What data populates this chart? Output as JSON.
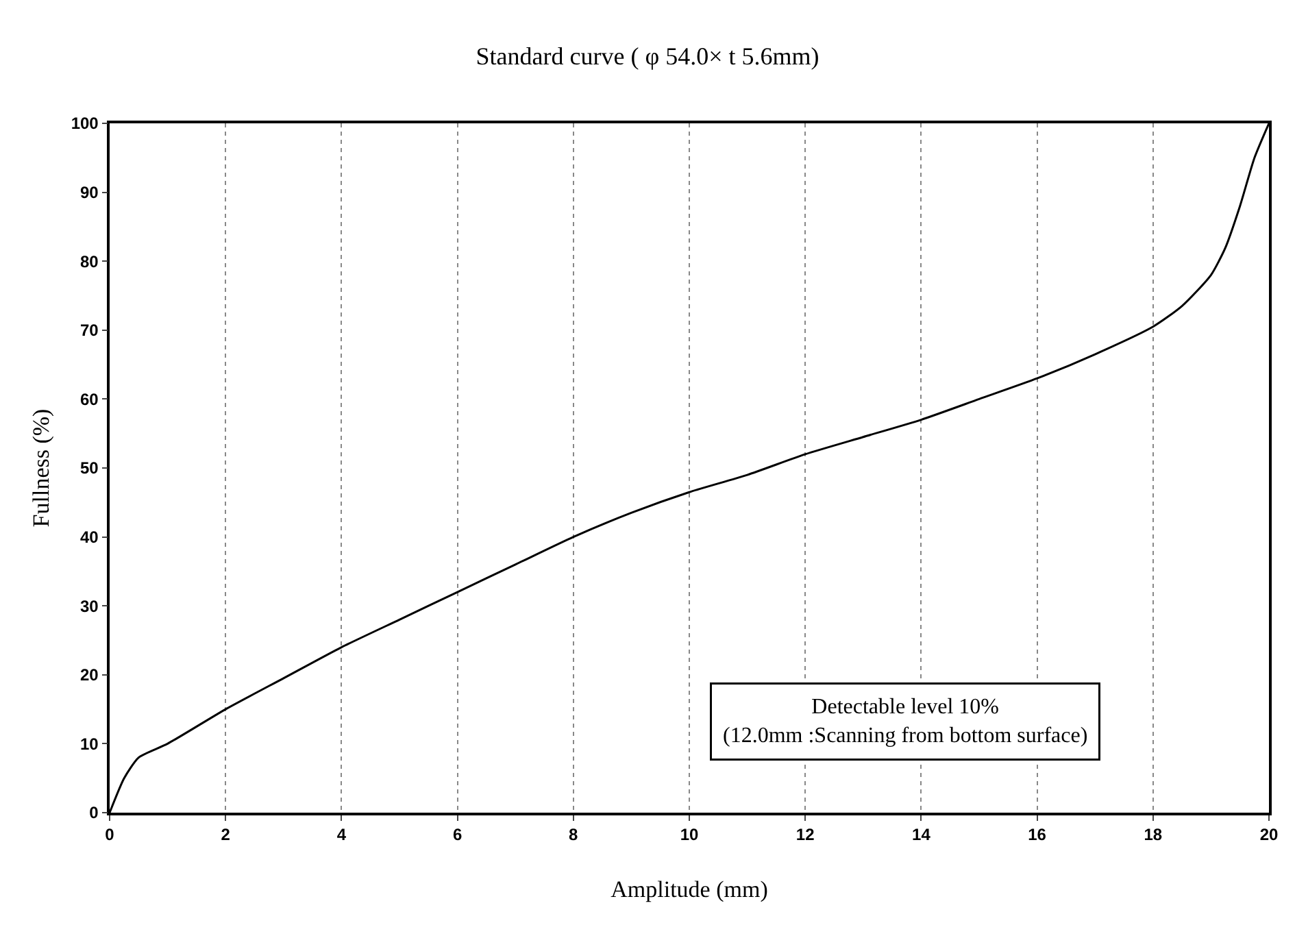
{
  "chart_data": {
    "type": "line",
    "title": "Standard curve ( φ 54.0× t 5.6mm)",
    "xlabel": "Amplitude (mm)",
    "ylabel": "Fullness (%)",
    "x": [
      0,
      0.25,
      0.5,
      1,
      2,
      3,
      4,
      5,
      6,
      7,
      8,
      9,
      10,
      11,
      12,
      13,
      14,
      15,
      16,
      17,
      18,
      18.5,
      19,
      19.25,
      19.5,
      19.75,
      20
    ],
    "series": [
      {
        "color": "#000000",
        "values": [
          0,
          5,
          8,
          10,
          15,
          19.5,
          24,
          28,
          32,
          36,
          40,
          43.5,
          46.5,
          49,
          52,
          54.5,
          57,
          60,
          63,
          66.5,
          70.5,
          73.5,
          78,
          82,
          88,
          95,
          100
        ]
      }
    ],
    "xlim": [
      0,
      20
    ],
    "xticks": [
      0,
      2,
      4,
      6,
      8,
      10,
      12,
      14,
      16,
      18,
      20
    ],
    "ylim": [
      0,
      100
    ],
    "yticks": [
      0,
      10,
      20,
      30,
      40,
      50,
      60,
      70,
      80,
      90,
      100
    ],
    "grid": "x",
    "marker": "none",
    "line_style": "solid",
    "annotations": [
      "Detectable level 10%\n(12.0mm :Scanning from bottom surface)"
    ]
  }
}
